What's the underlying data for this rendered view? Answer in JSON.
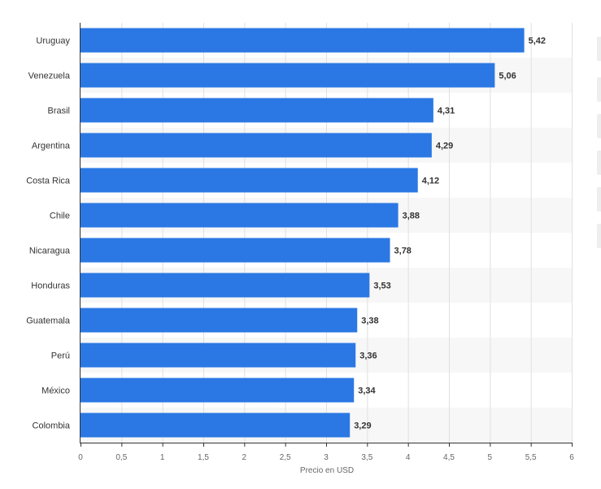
{
  "chart_data": {
    "type": "bar",
    "orientation": "horizontal",
    "categories": [
      "Uruguay",
      "Venezuela",
      "Brasil",
      "Argentina",
      "Costa Rica",
      "Chile",
      "Nicaragua",
      "Honduras",
      "Guatemala",
      "Perú",
      "México",
      "Colombia"
    ],
    "values": [
      5.42,
      5.06,
      4.31,
      4.29,
      4.12,
      3.88,
      3.78,
      3.53,
      3.38,
      3.36,
      3.34,
      3.29
    ],
    "value_labels": [
      "5,42",
      "5,06",
      "4,31",
      "4,29",
      "4,12",
      "3,88",
      "3,78",
      "3,53",
      "3,38",
      "3,36",
      "3,34",
      "3,29"
    ],
    "xlabel": "Precio en USD",
    "xlim": [
      0,
      6
    ],
    "xticks": [
      0,
      0.5,
      1,
      1.5,
      2,
      2.5,
      3,
      3.5,
      4,
      4.5,
      5,
      5.5,
      6
    ],
    "xtick_labels": [
      "0",
      "0,5",
      "1",
      "1,5",
      "2",
      "2,5",
      "3",
      "3,5",
      "4",
      "4,5",
      "5",
      "5,5",
      "6"
    ],
    "grid": "vertical",
    "colors": {
      "bar": "#2b78e4",
      "grid": "#e0e0e0",
      "band": "#f7f7f7",
      "axis": "#333333",
      "category_text": "#333333",
      "value_text": "#333333",
      "tick_text": "#666666"
    }
  }
}
